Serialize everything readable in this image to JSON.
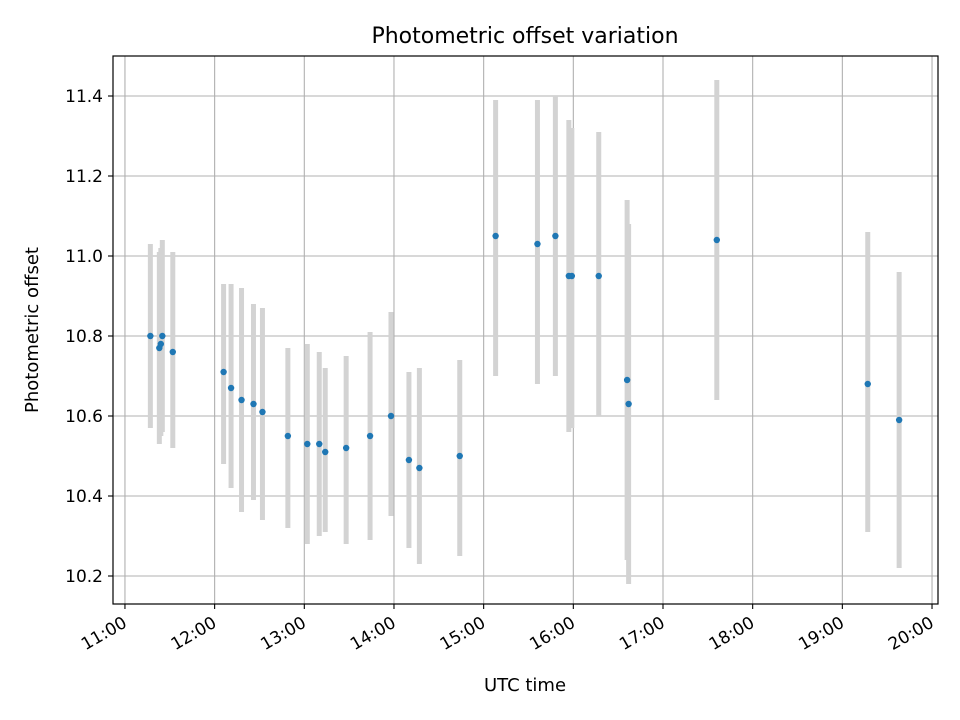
{
  "chart_data": {
    "type": "scatter",
    "title": "Photometric offset variation",
    "xlabel": "UTC time",
    "ylabel": "Photometric offset",
    "x_ticks": [
      "11:00",
      "12:00",
      "13:00",
      "14:00",
      "15:00",
      "16:00",
      "17:00",
      "18:00",
      "19:00",
      "20:00"
    ],
    "y_ticks": [
      "10.2",
      "10.4",
      "10.6",
      "10.8",
      "11.0",
      "11.2",
      "11.4"
    ],
    "xlim": [
      "10:52",
      "20:04"
    ],
    "ylim": [
      10.13,
      11.5
    ],
    "grid": true,
    "colors": {
      "points": "#1f77b4",
      "errorbars": "#d3d3d3",
      "grid": "#b0b0b0"
    },
    "series": [
      {
        "points": [
          {
            "t": "11:17",
            "y": 10.8,
            "lo": 10.57,
            "hi": 11.03
          },
          {
            "t": "11:23",
            "y": 10.77,
            "lo": 10.53,
            "hi": 11.01
          },
          {
            "t": "11:24",
            "y": 10.78,
            "lo": 10.55,
            "hi": 11.02
          },
          {
            "t": "11:25",
            "y": 10.8,
            "lo": 10.56,
            "hi": 11.04
          },
          {
            "t": "11:32",
            "y": 10.76,
            "lo": 10.52,
            "hi": 11.01
          },
          {
            "t": "12:06",
            "y": 10.71,
            "lo": 10.48,
            "hi": 10.93
          },
          {
            "t": "12:11",
            "y": 10.67,
            "lo": 10.42,
            "hi": 10.93
          },
          {
            "t": "12:18",
            "y": 10.64,
            "lo": 10.36,
            "hi": 10.92
          },
          {
            "t": "12:26",
            "y": 10.63,
            "lo": 10.39,
            "hi": 10.88
          },
          {
            "t": "12:32",
            "y": 10.61,
            "lo": 10.34,
            "hi": 10.87
          },
          {
            "t": "12:49",
            "y": 10.55,
            "lo": 10.32,
            "hi": 10.77
          },
          {
            "t": "13:02",
            "y": 10.53,
            "lo": 10.28,
            "hi": 10.78
          },
          {
            "t": "13:10",
            "y": 10.53,
            "lo": 10.3,
            "hi": 10.76
          },
          {
            "t": "13:14",
            "y": 10.51,
            "lo": 10.31,
            "hi": 10.72
          },
          {
            "t": "13:28",
            "y": 10.52,
            "lo": 10.28,
            "hi": 10.75
          },
          {
            "t": "13:44",
            "y": 10.55,
            "lo": 10.29,
            "hi": 10.81
          },
          {
            "t": "13:58",
            "y": 10.6,
            "lo": 10.35,
            "hi": 10.86
          },
          {
            "t": "14:10",
            "y": 10.49,
            "lo": 10.27,
            "hi": 10.71
          },
          {
            "t": "14:17",
            "y": 10.47,
            "lo": 10.23,
            "hi": 10.72
          },
          {
            "t": "14:44",
            "y": 10.5,
            "lo": 10.25,
            "hi": 10.74
          },
          {
            "t": "15:08",
            "y": 11.05,
            "lo": 10.7,
            "hi": 11.39
          },
          {
            "t": "15:36",
            "y": 11.03,
            "lo": 10.68,
            "hi": 11.39
          },
          {
            "t": "15:48",
            "y": 11.05,
            "lo": 10.7,
            "hi": 11.4
          },
          {
            "t": "15:57",
            "y": 10.95,
            "lo": 10.56,
            "hi": 11.34
          },
          {
            "t": "15:59",
            "y": 10.95,
            "lo": 10.57,
            "hi": 11.32
          },
          {
            "t": "16:17",
            "y": 10.95,
            "lo": 10.6,
            "hi": 11.31
          },
          {
            "t": "16:36",
            "y": 10.69,
            "lo": 10.24,
            "hi": 11.14
          },
          {
            "t": "16:37",
            "y": 10.63,
            "lo": 10.18,
            "hi": 11.08
          },
          {
            "t": "17:36",
            "y": 11.04,
            "lo": 10.64,
            "hi": 11.44
          },
          {
            "t": "19:17",
            "y": 10.68,
            "lo": 10.31,
            "hi": 11.06
          },
          {
            "t": "19:38",
            "y": 10.59,
            "lo": 10.22,
            "hi": 10.96
          }
        ]
      }
    ]
  }
}
